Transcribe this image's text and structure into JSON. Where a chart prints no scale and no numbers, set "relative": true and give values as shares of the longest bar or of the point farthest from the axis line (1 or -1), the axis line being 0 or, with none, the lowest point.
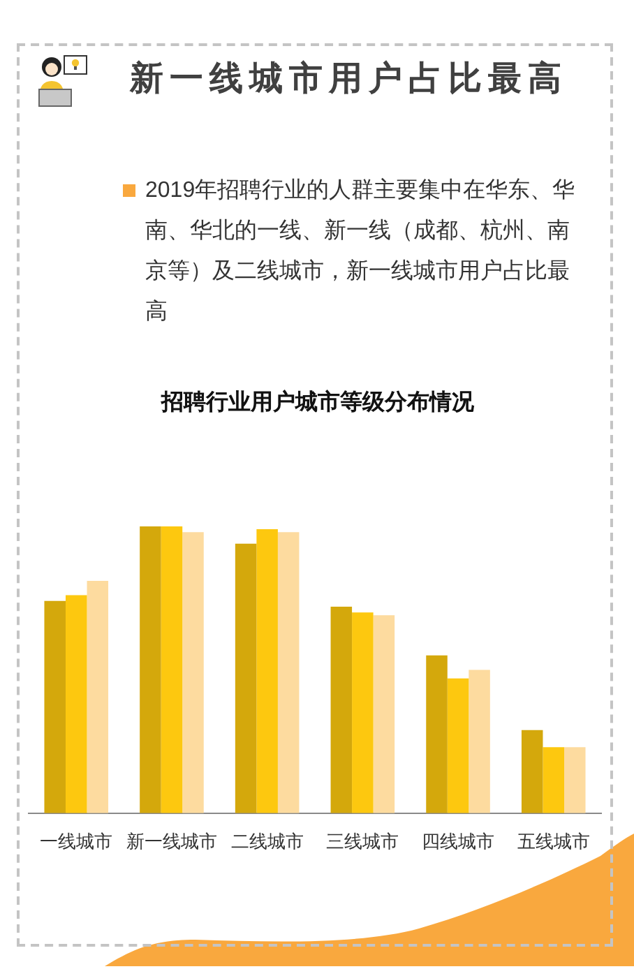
{
  "chart_data": {
    "type": "bar",
    "title": "招聘行业用户城市等级分布情况",
    "subtitle": "新一线城市用户占比最高",
    "annotations": [
      "2019年招聘行业的人群主要集中在华东、华南、华北的一线、新一线（成都、杭州、南京等）及二线城市，新一线城市用户占比最高"
    ],
    "categories": [
      "一线城市",
      "新一线城市",
      "二线城市",
      "三线城市",
      "四线城市",
      "五线城市"
    ],
    "relative": true,
    "grid": false,
    "legend": false,
    "series": [
      {
        "color": "#d4a80c",
        "values": [
          0.74,
          1,
          0.94,
          0.72,
          0.55,
          0.29
        ]
      },
      {
        "color": "#fdc80f",
        "values": [
          0.76,
          1,
          0.99,
          0.7,
          0.47,
          0.23
        ]
      },
      {
        "color": "#fddb9f",
        "values": [
          0.81,
          0.98,
          0.98,
          0.69,
          0.5,
          0.23
        ]
      }
    ]
  }
}
